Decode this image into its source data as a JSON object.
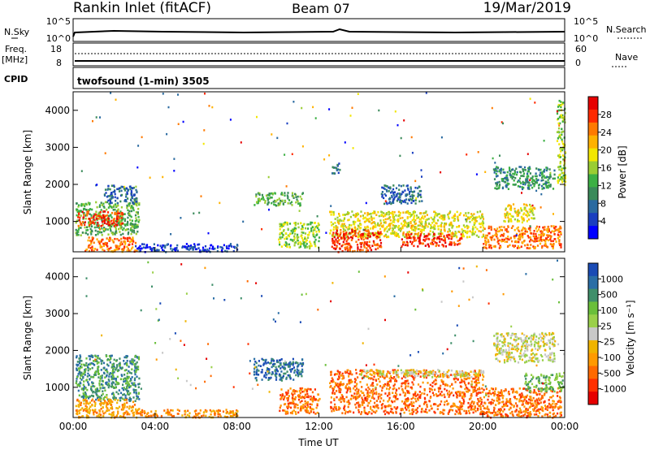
{
  "header": {
    "station": "Rankin Inlet (fitACF)",
    "beam": "Beam 07",
    "date": "19/Mar/2019"
  },
  "status_panels": {
    "nsky_label": "N.Sky",
    "nsearch_label": "N.Search",
    "freq_label_top": "Freq.",
    "freq_label_unit": "[MHz]",
    "nave_label": "Nave",
    "cpid_label": "CPID",
    "noise_ticks": [
      "10^5",
      "10^0"
    ],
    "freq_ticks": [
      "18",
      "8"
    ],
    "nave_ticks": [
      "60",
      "0"
    ],
    "cpid_text": "twofsound (1-min) 3505"
  },
  "chart_data": [
    {
      "type": "heatmap",
      "panel": "power",
      "xlabel": "Time UT",
      "ylabel": "Slant Range [km]",
      "x_ticks": [
        "00:00",
        "04:00",
        "08:00",
        "12:00",
        "16:00",
        "20:00",
        "00:00"
      ],
      "x_range_hours": [
        0,
        24
      ],
      "y_ticks": [
        1000,
        2000,
        3000,
        4000
      ],
      "y_range_km": [
        180,
        4500
      ],
      "colorbar_label": "Power [dB]",
      "colorbar_ticks": [
        "28",
        "24",
        "20",
        "16",
        "12",
        "8",
        "4"
      ],
      "colorbar_colors": [
        "#e60000",
        "#ff2a00",
        "#ff7a00",
        "#ffb200",
        "#f2e600",
        "#9acd32",
        "#3cb044",
        "#3a8a5a",
        "#2a6aa0",
        "#1a3fc0",
        "#0000ff"
      ],
      "regions": [
        {
          "t": [
            0.1,
            3.2
          ],
          "r": [
            650,
            1550
          ],
          "c": 6
        },
        {
          "t": [
            0.2,
            2.4
          ],
          "r": [
            900,
            1300
          ],
          "c": 1
        },
        {
          "t": [
            1.5,
            3.1
          ],
          "r": [
            1500,
            2000
          ],
          "c": 8
        },
        {
          "t": [
            0.5,
            3.1
          ],
          "r": [
            200,
            600
          ],
          "c": 2
        },
        {
          "t": [
            3.0,
            8.0
          ],
          "r": [
            200,
            420
          ],
          "c": 9
        },
        {
          "t": [
            8.8,
            11.2
          ],
          "r": [
            1450,
            1800
          ],
          "c": 6
        },
        {
          "t": [
            10.0,
            12.0
          ],
          "r": [
            300,
            1000
          ],
          "c": 5
        },
        {
          "t": [
            12.5,
            20.0
          ],
          "r": [
            600,
            1300
          ],
          "c": 4
        },
        {
          "t": [
            12.6,
            15.0
          ],
          "r": [
            200,
            800
          ],
          "c": 1
        },
        {
          "t": [
            16.0,
            19.0
          ],
          "r": [
            350,
            700
          ],
          "c": 1
        },
        {
          "t": [
            15.0,
            17.0
          ],
          "r": [
            1500,
            2000
          ],
          "c": 8
        },
        {
          "t": [
            20.0,
            23.8
          ],
          "r": [
            300,
            900
          ],
          "c": 2
        },
        {
          "t": [
            20.5,
            23.5
          ],
          "r": [
            1900,
            2500
          ],
          "c": 7
        },
        {
          "t": [
            21.0,
            22.5
          ],
          "r": [
            1000,
            1500
          ],
          "c": 4
        },
        {
          "t": [
            12.6,
            13.0
          ],
          "r": [
            2300,
            2600
          ],
          "c": 8
        },
        {
          "t": [
            23.6,
            24.0
          ],
          "r": [
            2000,
            4300
          ],
          "c": 5
        }
      ]
    },
    {
      "type": "heatmap",
      "panel": "velocity",
      "xlabel": "Time UT",
      "ylabel": "Slant Range [km]",
      "x_ticks": [
        "00:00",
        "04:00",
        "08:00",
        "12:00",
        "16:00",
        "20:00",
        "00:00"
      ],
      "x_range_hours": [
        0,
        24
      ],
      "y_ticks": [
        1000,
        2000,
        3000,
        4000
      ],
      "y_range_km": [
        180,
        4500
      ],
      "colorbar_label": "Velocity [m s⁻¹]",
      "colorbar_ticks": [
        "1000",
        "500",
        "100",
        "25",
        "-25",
        "-100",
        "-500",
        "-1000"
      ],
      "colorbar_colors": [
        "#1a4bb5",
        "#2a6ea6",
        "#3f8f6a",
        "#6abf3a",
        "#9ad04a",
        "#c8c8c8",
        "#f0b400",
        "#ff9a00",
        "#ff6a00",
        "#ff3000",
        "#e60000"
      ],
      "regions": [
        {
          "t": [
            0.1,
            3.2
          ],
          "r": [
            650,
            1900
          ],
          "c": 2
        },
        {
          "t": [
            0.1,
            3.2
          ],
          "r": [
            200,
            700
          ],
          "c": 7
        },
        {
          "t": [
            3.0,
            8.0
          ],
          "r": [
            200,
            420
          ],
          "c": 7
        },
        {
          "t": [
            8.8,
            11.2
          ],
          "r": [
            1200,
            1800
          ],
          "c": 1
        },
        {
          "t": [
            10.0,
            12.0
          ],
          "r": [
            300,
            1000
          ],
          "c": 8
        },
        {
          "t": [
            12.5,
            20.0
          ],
          "r": [
            300,
            1500
          ],
          "c": 8
        },
        {
          "t": [
            14.0,
            20.0
          ],
          "r": [
            1300,
            1500
          ],
          "c": 5
        },
        {
          "t": [
            20.0,
            23.8
          ],
          "r": [
            200,
            1000
          ],
          "c": 8
        },
        {
          "t": [
            20.5,
            23.5
          ],
          "r": [
            1700,
            2500
          ],
          "c": 5
        },
        {
          "t": [
            22.0,
            23.9
          ],
          "r": [
            900,
            1400
          ],
          "c": 3
        }
      ]
    }
  ]
}
